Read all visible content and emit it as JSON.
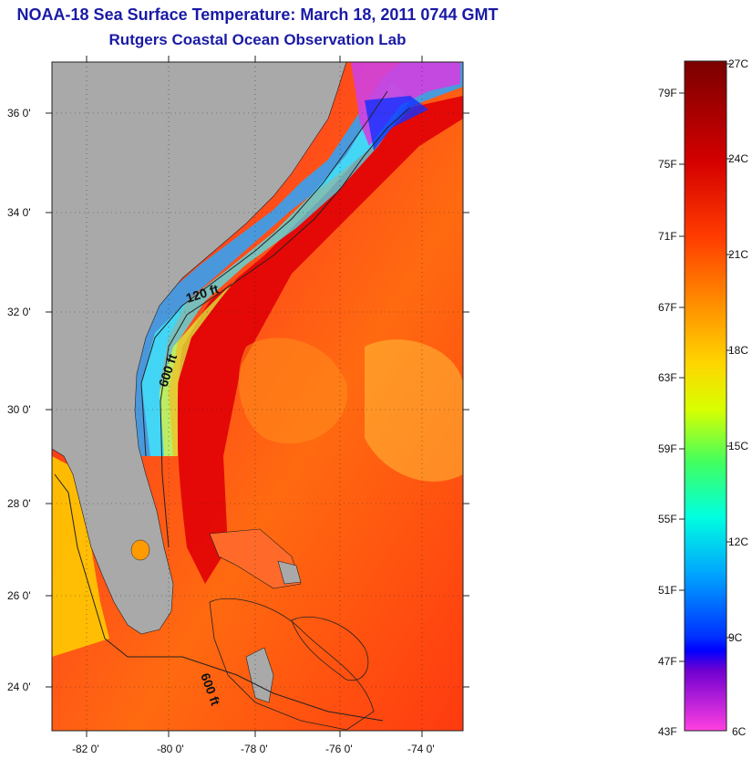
{
  "header": {
    "title": "NOAA-18 Sea Surface Temperature:  March 18, 2011 0744 GMT",
    "subtitle": "Rutgers Coastal Ocean Observation Lab"
  },
  "map": {
    "lat_labels": [
      "36 0'",
      "34 0'",
      "32 0'",
      "30 0'",
      "28 0'",
      "26 0'",
      "24 0'"
    ],
    "lon_labels": [
      "-82 0'",
      "-80 0'",
      "-78 0'",
      "-76 0'",
      "-74 0'"
    ],
    "lat_range": [
      23,
      37
    ],
    "lon_range": [
      -83,
      -73
    ],
    "isobath_labels": [
      "120 ft",
      "600 ft",
      "600 ft"
    ],
    "land_color": "#a9a9a9"
  },
  "colorbar": {
    "fahrenheit_labels": [
      "79F",
      "75F",
      "71F",
      "67F",
      "63F",
      "59F",
      "55F",
      "51F",
      "47F",
      "43F"
    ],
    "celsius_labels": [
      "27C",
      "24C",
      "21C",
      "18C",
      "15C",
      "12C",
      "9C",
      "6C"
    ],
    "range_c": [
      6,
      27
    ],
    "colors": [
      "#7a0000",
      "#d40000",
      "#ff3a00",
      "#ff8c00",
      "#ffd500",
      "#c8ff00",
      "#40ff60",
      "#00ffe0",
      "#00a0ff",
      "#0030ff",
      "#0000ff",
      "#8000d0",
      "#ff40e0"
    ]
  }
}
